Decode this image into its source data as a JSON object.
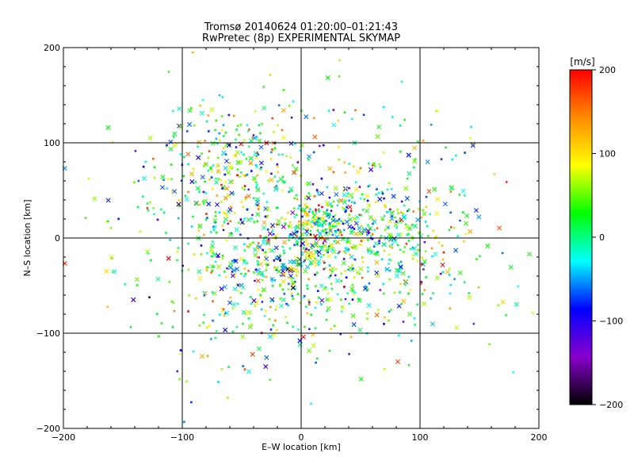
{
  "chart_data": {
    "type": "scatter",
    "title": "Tromsø 20140624 01:20:00–01:21:43",
    "subtitle": "RwPretec (8p) EXPERIMENTAL SKYMAP",
    "xlabel": "E–W location [km]",
    "ylabel": "N–S location [km]",
    "xlim": [
      -200,
      200
    ],
    "ylim": [
      -200,
      200
    ],
    "x_ticks": [
      -200,
      -100,
      0,
      100,
      200
    ],
    "y_ticks": [
      -200,
      -100,
      0,
      100,
      200
    ],
    "x_tick_labels": [
      "−200",
      "−100",
      "0",
      "100",
      "200"
    ],
    "y_tick_labels": [
      "−200",
      "−100",
      "0",
      "100",
      "200"
    ],
    "grid": true,
    "colorbar": {
      "label": "[m/s]",
      "min": -200,
      "max": 200,
      "ticks": [
        200,
        100,
        0,
        -100,
        -200
      ],
      "tick_labels": [
        "200",
        "100",
        "0",
        "−100",
        "−200"
      ],
      "stops": [
        "#ff0000",
        "#ff8c00",
        "#ffff00",
        "#00ff00",
        "#00ffff",
        "#0000ff",
        "#8800cc",
        "#000000"
      ]
    },
    "markers": [
      "cross-large",
      "dot-small"
    ],
    "point_count_estimate": 2400,
    "density_centers_km": [
      {
        "x": 15,
        "y": 10,
        "spread": 18
      },
      {
        "x": -20,
        "y": -35,
        "spread": 25
      },
      {
        "x": -60,
        "y": 80,
        "spread": 30
      },
      {
        "x": 60,
        "y": 0,
        "spread": 30
      }
    ],
    "velocity_distribution_m_s": {
      "mean": 20,
      "std": 80
    }
  }
}
